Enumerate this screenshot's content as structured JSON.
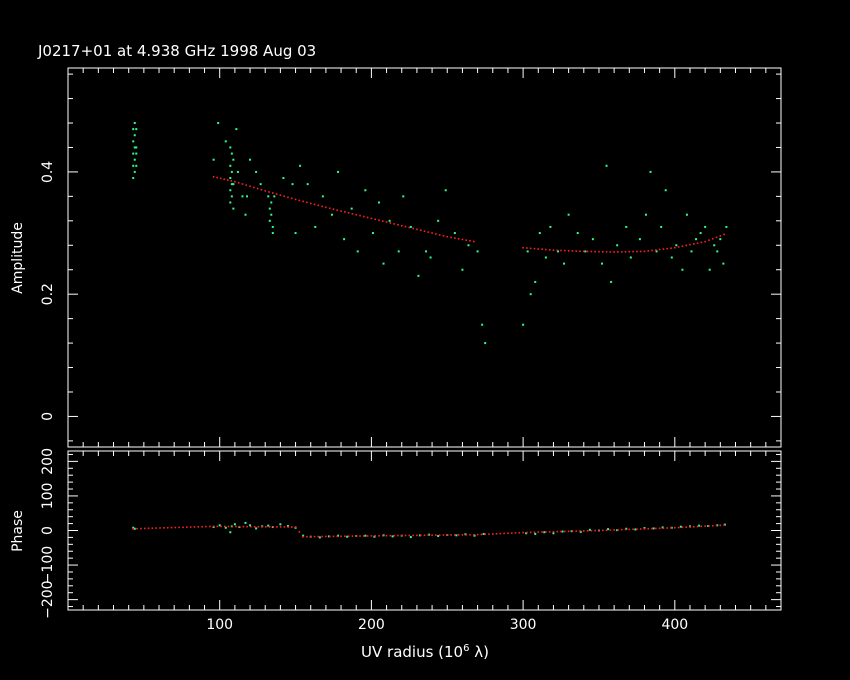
{
  "title": "J0217+01 at 4.938 GHz 1998 Aug 03",
  "colors": {
    "background": "#000000",
    "axes": "#ffffff",
    "data": "#2bff8a",
    "model": "#ff2020"
  },
  "chart_data": [
    {
      "type": "scatter",
      "name": "amplitude",
      "ylabel": "Amplitude",
      "xlim": [
        0,
        470
      ],
      "ylim": [
        -0.05,
        0.57
      ],
      "yticks": [
        0,
        0.2,
        0.4
      ],
      "ytick_labels": [
        "0",
        "0.2",
        "0.4"
      ],
      "series": [
        {
          "points": [
            [
              43,
              0.47
            ],
            [
              43,
              0.45
            ],
            [
              43,
              0.43
            ],
            [
              43,
              0.41
            ],
            [
              44,
              0.48
            ],
            [
              44,
              0.44
            ],
            [
              44,
              0.42
            ],
            [
              44,
              0.4
            ],
            [
              44,
              0.46
            ],
            [
              45,
              0.47
            ],
            [
              45,
              0.44
            ],
            [
              45,
              0.43
            ],
            [
              45,
              0.41
            ],
            [
              43,
              0.39
            ],
            [
              96,
              0.42
            ],
            [
              99,
              0.48
            ],
            [
              104,
              0.45
            ],
            [
              107,
              0.44
            ],
            [
              107,
              0.41
            ],
            [
              107,
              0.39
            ],
            [
              107,
              0.37
            ],
            [
              107,
              0.35
            ],
            [
              108,
              0.43
            ],
            [
              108,
              0.4
            ],
            [
              108,
              0.38
            ],
            [
              108,
              0.36
            ],
            [
              109,
              0.42
            ],
            [
              109,
              0.38
            ],
            [
              109,
              0.34
            ],
            [
              111,
              0.47
            ],
            [
              112,
              0.4
            ],
            [
              115,
              0.36
            ],
            [
              117,
              0.33
            ],
            [
              118,
              0.36
            ],
            [
              120,
              0.42
            ],
            [
              124,
              0.4
            ],
            [
              127,
              0.38
            ],
            [
              132,
              0.36
            ],
            [
              133,
              0.34
            ],
            [
              133,
              0.32
            ],
            [
              134,
              0.35
            ],
            [
              134,
              0.33
            ],
            [
              135,
              0.31
            ],
            [
              136,
              0.36
            ],
            [
              135,
              0.3
            ],
            [
              142,
              0.39
            ],
            [
              148,
              0.38
            ],
            [
              150,
              0.3
            ],
            [
              153,
              0.41
            ],
            [
              158,
              0.38
            ],
            [
              163,
              0.31
            ],
            [
              168,
              0.36
            ],
            [
              174,
              0.33
            ],
            [
              178,
              0.4
            ],
            [
              182,
              0.29
            ],
            [
              187,
              0.34
            ],
            [
              191,
              0.27
            ],
            [
              196,
              0.37
            ],
            [
              201,
              0.3
            ],
            [
              205,
              0.35
            ],
            [
              208,
              0.25
            ],
            [
              212,
              0.32
            ],
            [
              218,
              0.27
            ],
            [
              221,
              0.36
            ],
            [
              226,
              0.31
            ],
            [
              231,
              0.23
            ],
            [
              236,
              0.27
            ],
            [
              239,
              0.26
            ],
            [
              244,
              0.32
            ],
            [
              249,
              0.37
            ],
            [
              255,
              0.3
            ],
            [
              260,
              0.24
            ],
            [
              264,
              0.28
            ],
            [
              270,
              0.27
            ],
            [
              273,
              0.15
            ],
            [
              275,
              0.12
            ],
            [
              300,
              0.15
            ],
            [
              303,
              0.27
            ],
            [
              305,
              0.2
            ],
            [
              308,
              0.22
            ],
            [
              311,
              0.3
            ],
            [
              315,
              0.26
            ],
            [
              318,
              0.31
            ],
            [
              323,
              0.27
            ],
            [
              327,
              0.25
            ],
            [
              330,
              0.33
            ],
            [
              336,
              0.3
            ],
            [
              341,
              0.27
            ],
            [
              346,
              0.29
            ],
            [
              352,
              0.25
            ],
            [
              355,
              0.41
            ],
            [
              358,
              0.22
            ],
            [
              362,
              0.28
            ],
            [
              368,
              0.31
            ],
            [
              371,
              0.26
            ],
            [
              377,
              0.29
            ],
            [
              381,
              0.33
            ],
            [
              384,
              0.4
            ],
            [
              388,
              0.27
            ],
            [
              391,
              0.31
            ],
            [
              394,
              0.37
            ],
            [
              398,
              0.26
            ],
            [
              401,
              0.28
            ],
            [
              405,
              0.24
            ],
            [
              408,
              0.33
            ],
            [
              411,
              0.27
            ],
            [
              414,
              0.29
            ],
            [
              417,
              0.3
            ],
            [
              420,
              0.31
            ],
            [
              423,
              0.24
            ],
            [
              426,
              0.28
            ],
            [
              428,
              0.27
            ],
            [
              430,
              0.29
            ],
            [
              432,
              0.25
            ],
            [
              434,
              0.31
            ]
          ]
        },
        {
          "name": "model",
          "line": [
            [
              96,
              0.392
            ],
            [
              110,
              0.384
            ],
            [
              130,
              0.369
            ],
            [
              150,
              0.355
            ],
            [
              170,
              0.342
            ],
            [
              190,
              0.33
            ],
            [
              210,
              0.318
            ],
            [
              230,
              0.306
            ],
            [
              250,
              0.294
            ],
            [
              270,
              0.285
            ],
            [
              300,
              0.276
            ],
            [
              320,
              0.272
            ],
            [
              340,
              0.27
            ],
            [
              360,
              0.269
            ],
            [
              380,
              0.27
            ],
            [
              400,
              0.276
            ],
            [
              420,
              0.286
            ],
            [
              435,
              0.3
            ]
          ]
        }
      ]
    },
    {
      "type": "scatter",
      "name": "phase",
      "ylabel": "Phase",
      "xlabel": "UV radius  (10",
      "xlabel_exp": "6",
      "xlabel_end": " λ)",
      "xlim": [
        0,
        470
      ],
      "ylim": [
        -230,
        230
      ],
      "xticks": [
        100,
        200,
        300,
        400
      ],
      "xtick_labels": [
        "100",
        "200",
        "300",
        "400"
      ],
      "yticks": [
        -200,
        -100,
        0,
        100,
        200
      ],
      "ytick_labels": [
        "−200",
        "−100",
        "0",
        "100",
        "200"
      ],
      "series": [
        {
          "points": [
            [
              43,
              8
            ],
            [
              44,
              5
            ],
            [
              96,
              10
            ],
            [
              100,
              15
            ],
            [
              104,
              8
            ],
            [
              107,
              -5
            ],
            [
              108,
              12
            ],
            [
              110,
              18
            ],
            [
              113,
              10
            ],
            [
              117,
              22
            ],
            [
              120,
              15
            ],
            [
              124,
              6
            ],
            [
              128,
              12
            ],
            [
              132,
              14
            ],
            [
              135,
              10
            ],
            [
              140,
              18
            ],
            [
              145,
              13
            ],
            [
              150,
              8
            ],
            [
              155,
              -15
            ],
            [
              160,
              -18
            ],
            [
              166,
              -20
            ],
            [
              172,
              -17
            ],
            [
              178,
              -15
            ],
            [
              184,
              -18
            ],
            [
              190,
              -16
            ],
            [
              196,
              -15
            ],
            [
              202,
              -18
            ],
            [
              208,
              -14
            ],
            [
              214,
              -17
            ],
            [
              220,
              -15
            ],
            [
              226,
              -19
            ],
            [
              232,
              -14
            ],
            [
              238,
              -12
            ],
            [
              244,
              -16
            ],
            [
              250,
              -13
            ],
            [
              256,
              -14
            ],
            [
              262,
              -11
            ],
            [
              268,
              -15
            ],
            [
              274,
              -10
            ],
            [
              302,
              -8
            ],
            [
              308,
              -10
            ],
            [
              314,
              -5
            ],
            [
              320,
              -8
            ],
            [
              326,
              -3
            ],
            [
              332,
              -2
            ],
            [
              338,
              -4
            ],
            [
              344,
              2
            ],
            [
              350,
              0
            ],
            [
              356,
              4
            ],
            [
              362,
              1
            ],
            [
              368,
              5
            ],
            [
              374,
              3
            ],
            [
              380,
              7
            ],
            [
              386,
              6
            ],
            [
              392,
              9
            ],
            [
              398,
              8
            ],
            [
              404,
              11
            ],
            [
              410,
              12
            ],
            [
              416,
              14
            ],
            [
              422,
              13
            ],
            [
              428,
              15
            ],
            [
              433,
              17
            ]
          ]
        },
        {
          "name": "model",
          "line": [
            [
              43,
              5
            ],
            [
              96,
              12
            ],
            [
              150,
              10
            ],
            [
              155,
              -18
            ],
            [
              270,
              -12
            ],
            [
              300,
              -6
            ],
            [
              350,
              0
            ],
            [
              400,
              8
            ],
            [
              435,
              16
            ]
          ]
        }
      ]
    }
  ]
}
